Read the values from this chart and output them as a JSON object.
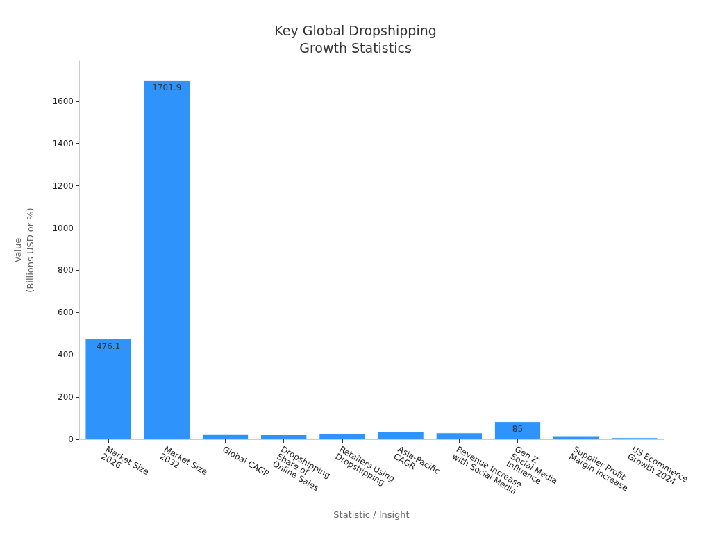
{
  "chart_data": {
    "type": "bar",
    "title": "Key Global Dropshipping\nGrowth Statistics",
    "xlabel": "Statistic / Insight",
    "ylabel": "Value\n(Billions USD or %)",
    "categories": [
      "Market Size\n2026",
      "Market Size\n2032",
      "Global CAGR",
      "Dropshipping\nShare of\nOnline Sales",
      "Retailers Using\nDropshipping",
      "Asia-Pacific\nCAGR",
      "Revenue Increase\nwith Social Media",
      "Gen Z\nSocial Media\nInfluence",
      "Supplier Profit\nMargin Increase",
      "US Ecommerce\nGrowth 2024"
    ],
    "values": [
      476.1,
      1701.9,
      24,
      23,
      27,
      38,
      32,
      85,
      18,
      9
    ],
    "value_labels": [
      "476.1",
      "1701.9",
      null,
      null,
      null,
      null,
      null,
      "85",
      null,
      null
    ],
    "color": "#2e93fa",
    "ylim": [
      0,
      1790
    ],
    "yticks": [
      0,
      200,
      400,
      600,
      800,
      1000,
      1200,
      1400,
      1600
    ],
    "grid": false
  }
}
